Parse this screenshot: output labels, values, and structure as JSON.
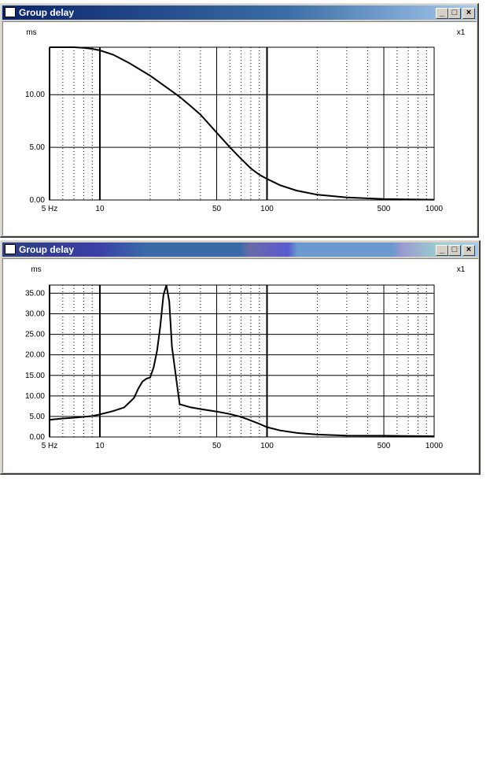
{
  "windows": [
    {
      "title": "Group delay",
      "y_unit": "ms",
      "scale_label": "x1",
      "chart_data": {
        "type": "line",
        "title": "Group delay",
        "ylabel": "ms",
        "xscale": "log",
        "xlim": [
          5,
          1000
        ],
        "ylim": [
          0,
          14.5
        ],
        "x_ticks": [
          5,
          10,
          50,
          100,
          500,
          1000
        ],
        "x_tick_labels": [
          "5 Hz",
          "10",
          "50",
          "100",
          "500",
          "1000"
        ],
        "y_ticks": [
          0,
          5,
          10
        ],
        "y_tick_labels": [
          "0.00",
          "5.00",
          "10.00"
        ],
        "grid": true,
        "series": [
          {
            "x": [
              5,
              6,
              7,
              8,
              9,
              10,
              12,
              15,
              20,
              25,
              30,
              35,
              40,
              50,
              60,
              70,
              80,
              90,
              100,
              120,
              150,
              200,
              300,
              500,
              700,
              1000
            ],
            "y": [
              14.5,
              14.5,
              14.5,
              14.45,
              14.35,
              14.2,
              13.8,
              13.0,
              11.8,
              10.7,
              9.8,
              8.9,
              8.1,
              6.4,
              5.0,
              3.9,
              3.0,
              2.4,
              2.0,
              1.4,
              0.9,
              0.5,
              0.25,
              0.1,
              0.05,
              0.03
            ]
          }
        ]
      }
    },
    {
      "title": "Group delay",
      "y_unit": "ms",
      "scale_label": "x1",
      "chart_data": {
        "type": "line",
        "title": "Group delay",
        "ylabel": "ms",
        "xscale": "log",
        "xlim": [
          5,
          1000
        ],
        "ylim": [
          0,
          37
        ],
        "x_ticks": [
          5,
          10,
          50,
          100,
          500,
          1000
        ],
        "x_tick_labels": [
          "5 Hz",
          "10",
          "50",
          "100",
          "500",
          "1000"
        ],
        "y_ticks": [
          0,
          5,
          10,
          15,
          20,
          25,
          30,
          35
        ],
        "y_tick_labels": [
          "0.00",
          "5.00",
          "10.00",
          "15.00",
          "20.00",
          "25.00",
          "30.00",
          "35.00"
        ],
        "grid": true,
        "series": [
          {
            "x": [
              5,
              6,
              7,
              8,
              9,
              10,
              12,
              14,
              16,
              17,
              18,
              19,
              20,
              21,
              22,
              23,
              24,
              25,
              26,
              27,
              30,
              35,
              40,
              50,
              60,
              70,
              80,
              90,
              100,
              120,
              150,
              200,
              300,
              500,
              700,
              1000
            ],
            "y": [
              4.2,
              4.5,
              4.7,
              4.9,
              5.1,
              5.5,
              6.3,
              7.2,
              9.5,
              11.8,
              13.5,
              14.2,
              14.5,
              17.0,
              21.0,
              27.0,
              34.5,
              37.0,
              33.0,
              22.0,
              8.0,
              7.2,
              6.8,
              6.2,
              5.6,
              4.9,
              4.0,
              3.2,
              2.4,
              1.6,
              1.0,
              0.6,
              0.35,
              0.3,
              0.25,
              0.2
            ]
          }
        ]
      }
    }
  ]
}
